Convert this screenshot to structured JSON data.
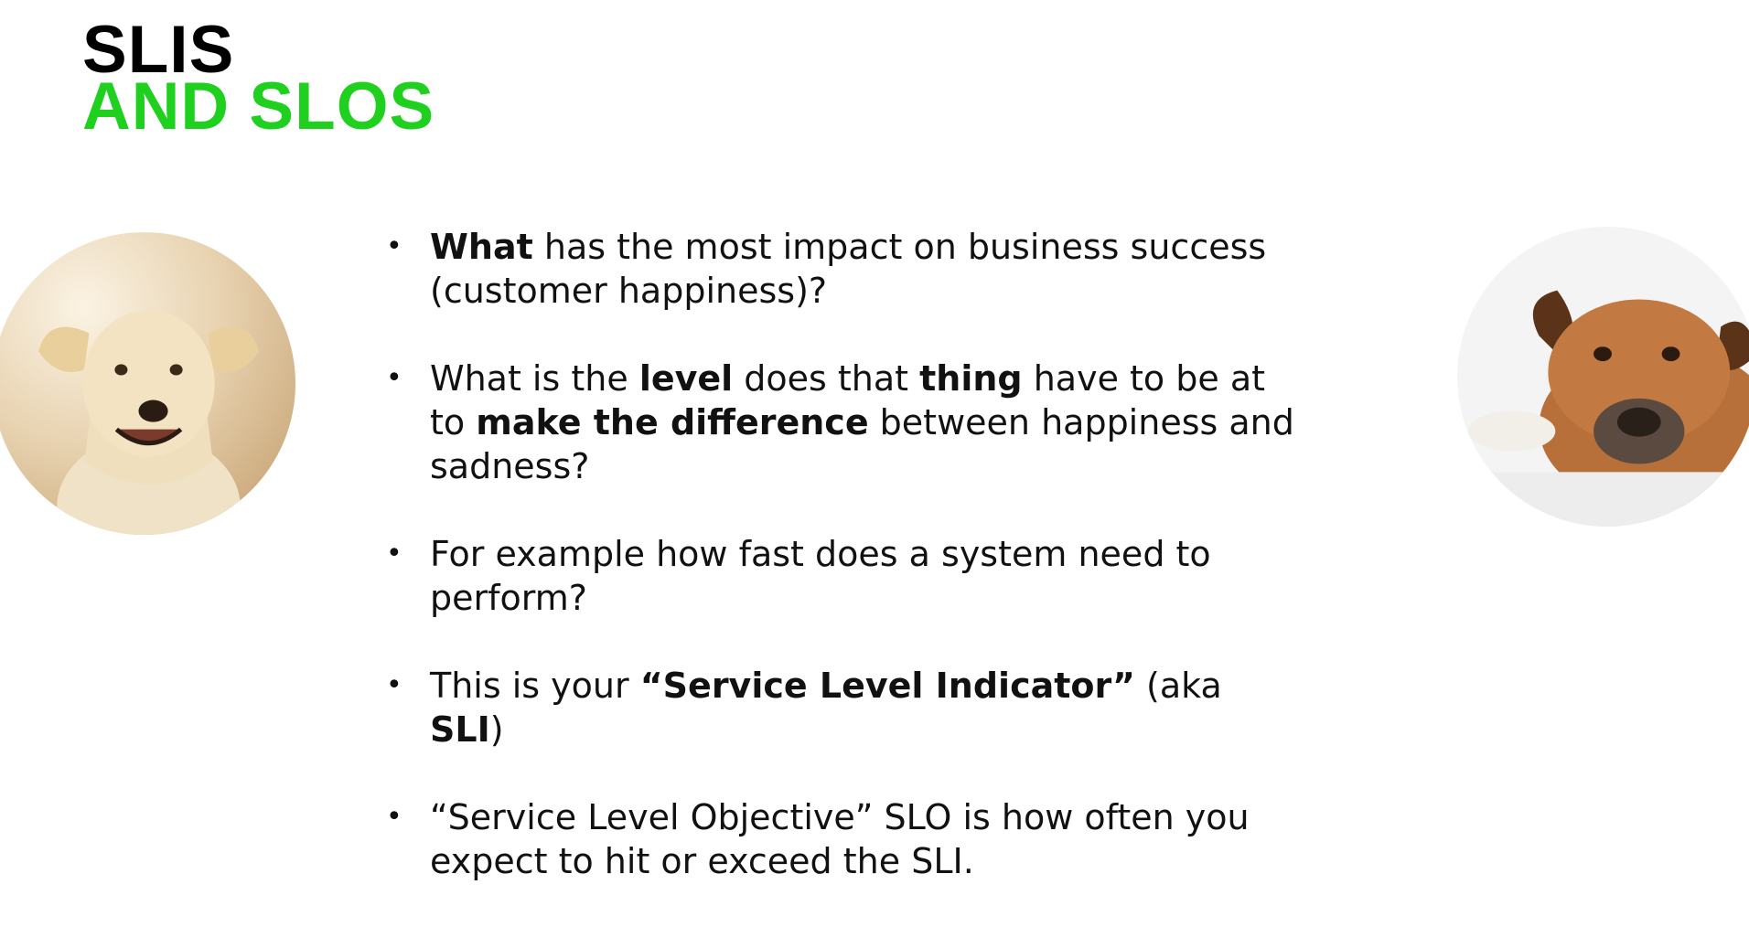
{
  "slide": {
    "title_line1": "SLIS",
    "title_line2": "AND SLOS",
    "accent_color": "#1fd01f",
    "images": {
      "left": "happy-dog-photo",
      "right": "sad-dog-photo"
    },
    "bullet_symbol": "•",
    "bullets": [
      {
        "b1_bold": "What",
        "b1_rest": " has the most impact on business success (customer happiness)?"
      },
      {
        "t1": "What is the ",
        "b1": "level",
        "t2": " does that ",
        "b2": "thing",
        "t3": " have to be at to ",
        "b3": "make the difference",
        "t4": " between happiness and sadness?"
      },
      {
        "text": "For example how fast does a system need to perform?"
      },
      {
        "t1": "This is your ",
        "b1": "“Service Level Indicator”",
        "t2": " (aka ",
        "b2": "SLI",
        "t3": ")"
      },
      {
        "text": "“Service Level Objective” SLO is how often you expect to hit or exceed the SLI."
      }
    ]
  }
}
